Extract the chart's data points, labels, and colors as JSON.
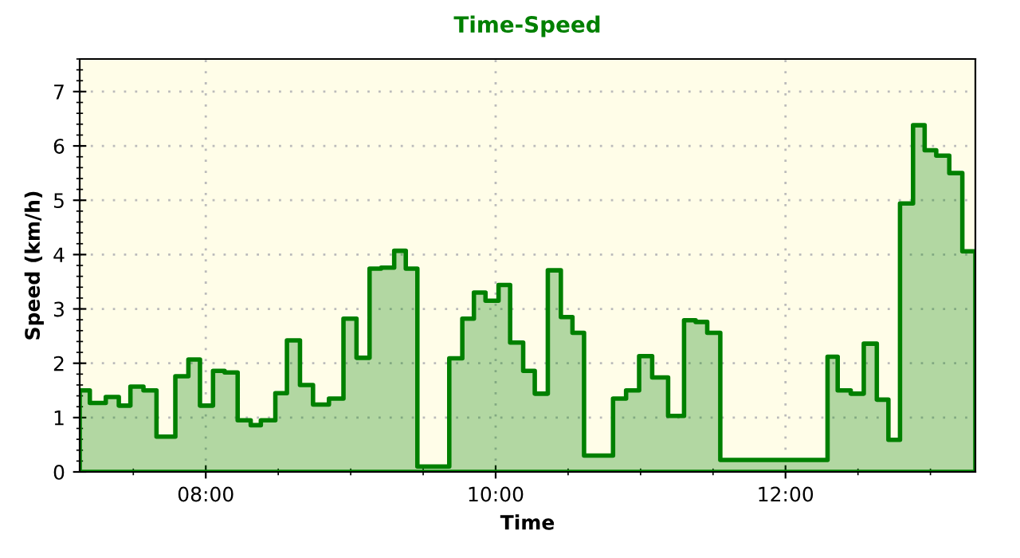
{
  "chart_data": {
    "type": "area",
    "title": "Time-Speed",
    "xlabel": "Time",
    "ylabel": "Speed (km/h)",
    "xlim": [
      7.13,
      13.31
    ],
    "xticks": [
      {
        "value": 8,
        "label": "08:00"
      },
      {
        "value": 10,
        "label": "10:00"
      },
      {
        "value": 12,
        "label": "12:00"
      }
    ],
    "ylim": [
      0,
      7.6
    ],
    "yticks": [
      0,
      1,
      2,
      3,
      4,
      5,
      6,
      7
    ],
    "grid": true,
    "x": [
      7.13,
      7.2,
      7.31,
      7.4,
      7.48,
      7.57,
      7.66,
      7.79,
      7.88,
      7.96,
      8.05,
      8.13,
      8.22,
      8.31,
      8.38,
      8.48,
      8.56,
      8.65,
      8.74,
      8.85,
      8.95,
      9.04,
      9.13,
      9.21,
      9.3,
      9.38,
      9.46,
      9.68,
      9.77,
      9.85,
      9.93,
      10.02,
      10.1,
      10.19,
      10.27,
      10.36,
      10.45,
      10.53,
      10.61,
      10.81,
      10.9,
      10.99,
      11.08,
      11.19,
      11.3,
      11.38,
      11.46,
      11.55,
      12.29,
      12.36,
      12.45,
      12.54,
      12.63,
      12.71,
      12.79,
      12.88,
      12.96,
      13.04,
      13.13,
      13.22,
      13.31
    ],
    "series": [
      {
        "color": "#008000",
        "values": [
          1.5,
          1.27,
          1.38,
          1.22,
          1.57,
          1.5,
          0.65,
          1.76,
          2.07,
          1.22,
          1.86,
          1.83,
          0.95,
          0.86,
          0.95,
          1.45,
          2.42,
          1.6,
          1.24,
          1.35,
          2.82,
          2.1,
          3.74,
          3.76,
          4.07,
          3.74,
          0.1,
          2.09,
          2.82,
          3.3,
          3.15,
          3.44,
          2.38,
          1.86,
          1.44,
          3.71,
          2.85,
          2.56,
          0.3,
          1.35,
          1.5,
          2.13,
          1.74,
          1.03,
          2.79,
          2.76,
          2.56,
          0.22,
          2.12,
          1.5,
          1.44,
          2.36,
          1.33,
          0.59,
          4.94,
          6.38,
          5.92,
          5.82,
          5.5,
          4.06,
          4.06
        ]
      }
    ]
  }
}
